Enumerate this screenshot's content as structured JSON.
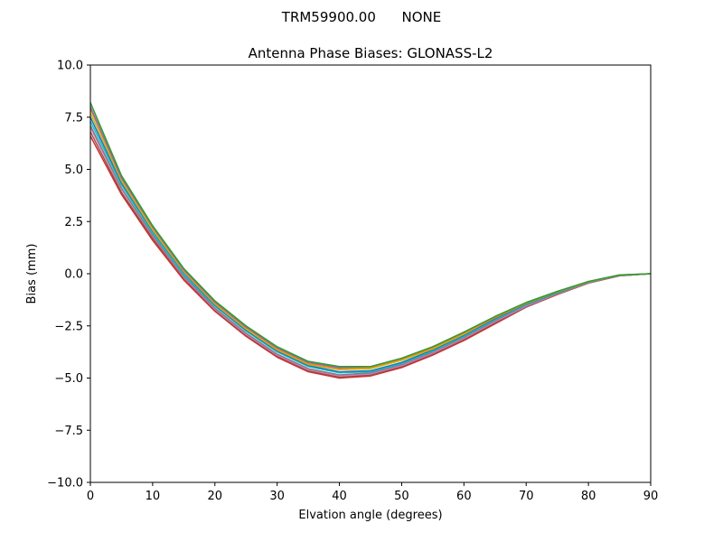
{
  "chart_data": {
    "type": "line",
    "suptitle": "TRM59900.00      NONE",
    "title": "Antenna Phase Biases: GLONASS-L2",
    "xlabel": "Elvation angle (degrees)",
    "ylabel": "Bias (mm)",
    "xlim": [
      0,
      90
    ],
    "ylim": [
      -10,
      10
    ],
    "xticks": [
      0,
      10,
      20,
      30,
      40,
      50,
      60,
      70,
      80,
      90
    ],
    "xtick_labels": [
      "0",
      "10",
      "20",
      "30",
      "40",
      "50",
      "60",
      "70",
      "80",
      "90"
    ],
    "yticks": [
      10,
      7.5,
      5,
      2.5,
      0,
      -2.5,
      -5,
      -7.5,
      -10
    ],
    "ytick_labels": [
      "10.0",
      "7.5",
      "5.0",
      "2.5",
      "0.0",
      "−2.5",
      "−5.0",
      "−7.5",
      "−10.0"
    ],
    "grid": false,
    "x": [
      0,
      5,
      10,
      15,
      20,
      25,
      30,
      35,
      40,
      45,
      50,
      55,
      60,
      65,
      70,
      75,
      80,
      85,
      90
    ],
    "series": [
      {
        "color": "#d62728",
        "values": [
          6.6,
          3.8,
          1.6,
          -0.3,
          -1.8,
          -3.0,
          -4.0,
          -4.7,
          -5.0,
          -4.9,
          -4.5,
          -3.9,
          -3.2,
          -2.4,
          -1.6,
          -1.0,
          -0.45,
          -0.1,
          0.0
        ]
      },
      {
        "color": "#8c564b",
        "values": [
          6.8,
          3.9,
          1.7,
          -0.2,
          -1.75,
          -2.95,
          -3.95,
          -4.65,
          -4.95,
          -4.85,
          -4.45,
          -3.85,
          -3.15,
          -2.35,
          -1.6,
          -0.98,
          -0.44,
          -0.1,
          0.0
        ]
      },
      {
        "color": "#e377c2",
        "values": [
          7.0,
          4.05,
          1.8,
          -0.15,
          -1.7,
          -2.9,
          -3.9,
          -4.6,
          -4.9,
          -4.8,
          -4.4,
          -3.8,
          -3.1,
          -2.3,
          -1.55,
          -0.96,
          -0.43,
          -0.09,
          0.0
        ]
      },
      {
        "color": "#7f7f7f",
        "values": [
          7.1,
          4.1,
          1.85,
          -0.1,
          -1.65,
          -2.85,
          -3.85,
          -4.55,
          -4.85,
          -4.75,
          -4.35,
          -3.75,
          -3.05,
          -2.25,
          -1.5,
          -0.94,
          -0.42,
          -0.09,
          0.0
        ]
      },
      {
        "color": "#17becf",
        "values": [
          7.3,
          4.25,
          1.95,
          -0.05,
          -1.55,
          -2.75,
          -3.75,
          -4.45,
          -4.75,
          -4.7,
          -4.3,
          -3.7,
          -3.0,
          -2.2,
          -1.48,
          -0.92,
          -0.41,
          -0.08,
          0.0
        ]
      },
      {
        "color": "#1f77b4",
        "values": [
          7.5,
          4.35,
          2.05,
          0.05,
          -1.5,
          -2.7,
          -3.7,
          -4.4,
          -4.7,
          -4.65,
          -4.25,
          -3.65,
          -2.95,
          -2.15,
          -1.45,
          -0.9,
          -0.4,
          -0.08,
          0.0
        ]
      },
      {
        "color": "#bcbd22",
        "values": [
          7.7,
          4.45,
          2.1,
          0.1,
          -1.45,
          -2.65,
          -3.65,
          -4.35,
          -4.6,
          -4.55,
          -4.15,
          -3.6,
          -2.9,
          -2.1,
          -1.42,
          -0.88,
          -0.39,
          -0.07,
          0.0
        ]
      },
      {
        "color": "#ff7f0e",
        "values": [
          7.9,
          4.55,
          2.2,
          0.15,
          -1.4,
          -2.6,
          -3.6,
          -4.3,
          -4.55,
          -4.5,
          -4.1,
          -3.55,
          -2.85,
          -2.1,
          -1.4,
          -0.86,
          -0.38,
          -0.07,
          0.0
        ]
      },
      {
        "color": "#9467bd",
        "values": [
          8.0,
          4.6,
          2.25,
          0.2,
          -1.35,
          -2.55,
          -3.55,
          -4.25,
          -4.5,
          -4.45,
          -4.05,
          -3.5,
          -2.8,
          -2.05,
          -1.38,
          -0.85,
          -0.37,
          -0.06,
          0.0
        ]
      },
      {
        "color": "#2ca02c",
        "values": [
          8.2,
          4.7,
          2.3,
          0.25,
          -1.3,
          -2.5,
          -3.5,
          -4.2,
          -4.45,
          -4.45,
          -4.05,
          -3.5,
          -2.8,
          -2.05,
          -1.38,
          -0.85,
          -0.37,
          -0.06,
          0.0
        ]
      }
    ]
  }
}
